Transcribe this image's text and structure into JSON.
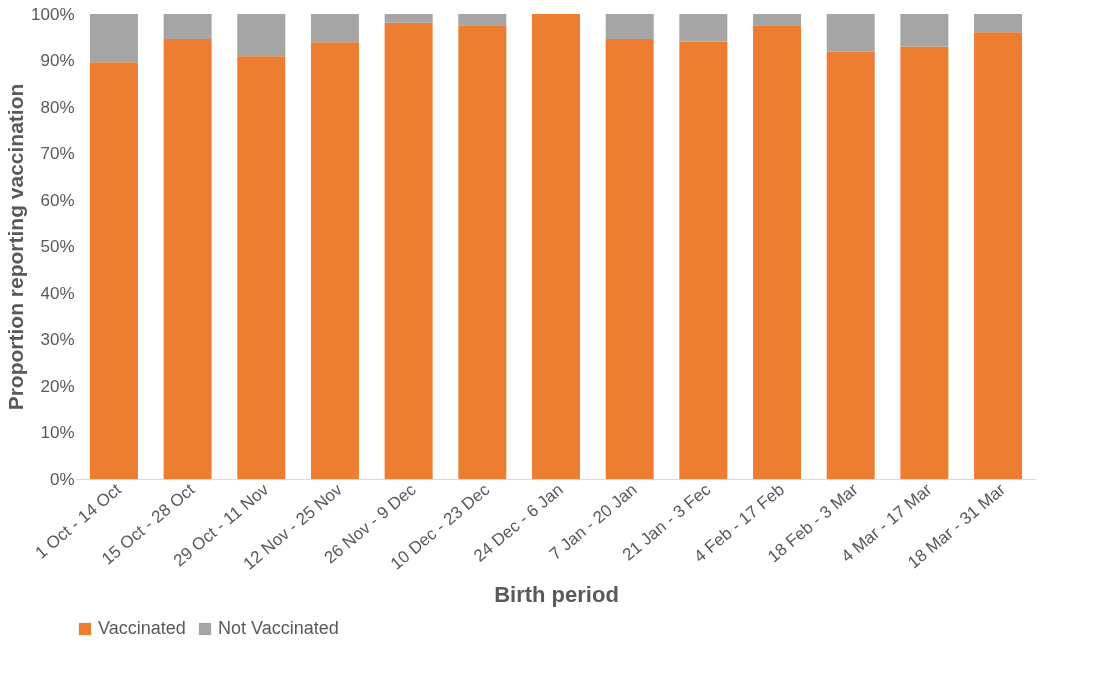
{
  "chart_data": {
    "type": "bar",
    "stacked": true,
    "xlabel": "Birth period",
    "ylabel": "Proportion reporting vaccination",
    "categories": [
      "1 Oct - 14 Oct",
      "15 Oct - 28 Oct",
      "29 Oct - 11 Nov",
      "12 Nov - 25 Nov",
      "26 Nov - 9 Dec",
      "10 Dec - 23 Dec",
      "24 Dec - 6 Jan",
      "7 Jan - 20 Jan",
      "21 Jan - 3 Fec",
      "4 Feb - 17 Feb",
      "18 Feb - 3 Mar",
      "4 Mar - 17 Mar",
      "18 Mar - 31 Mar"
    ],
    "series": [
      {
        "name": "Vaccinated",
        "color": "#ed7d31",
        "values": [
          89.6,
          94.6,
          90.9,
          93.9,
          98.1,
          97.6,
          100,
          94.6,
          94.1,
          97.6,
          91.9,
          93,
          96.1
        ]
      },
      {
        "name": "Not Vaccinated",
        "color": "#a5a5a5",
        "values": [
          10.4,
          5.4,
          9.1,
          6.1,
          1.9,
          2.4,
          0,
          5.4,
          5.9,
          2.4,
          8.1,
          7,
          3.9
        ]
      }
    ],
    "ylim": [
      0,
      100
    ],
    "yticks": [
      {
        "value": 0,
        "label": "0%"
      },
      {
        "value": 10,
        "label": "10%"
      },
      {
        "value": 20,
        "label": "20%"
      },
      {
        "value": 30,
        "label": "30%"
      },
      {
        "value": 40,
        "label": "40%"
      },
      {
        "value": 50,
        "label": "50%"
      },
      {
        "value": 60,
        "label": "60%"
      },
      {
        "value": 70,
        "label": "70%"
      },
      {
        "value": 80,
        "label": "80%"
      },
      {
        "value": 90,
        "label": "90%"
      },
      {
        "value": 100,
        "label": "100%"
      }
    ],
    "legend": "bottom"
  }
}
